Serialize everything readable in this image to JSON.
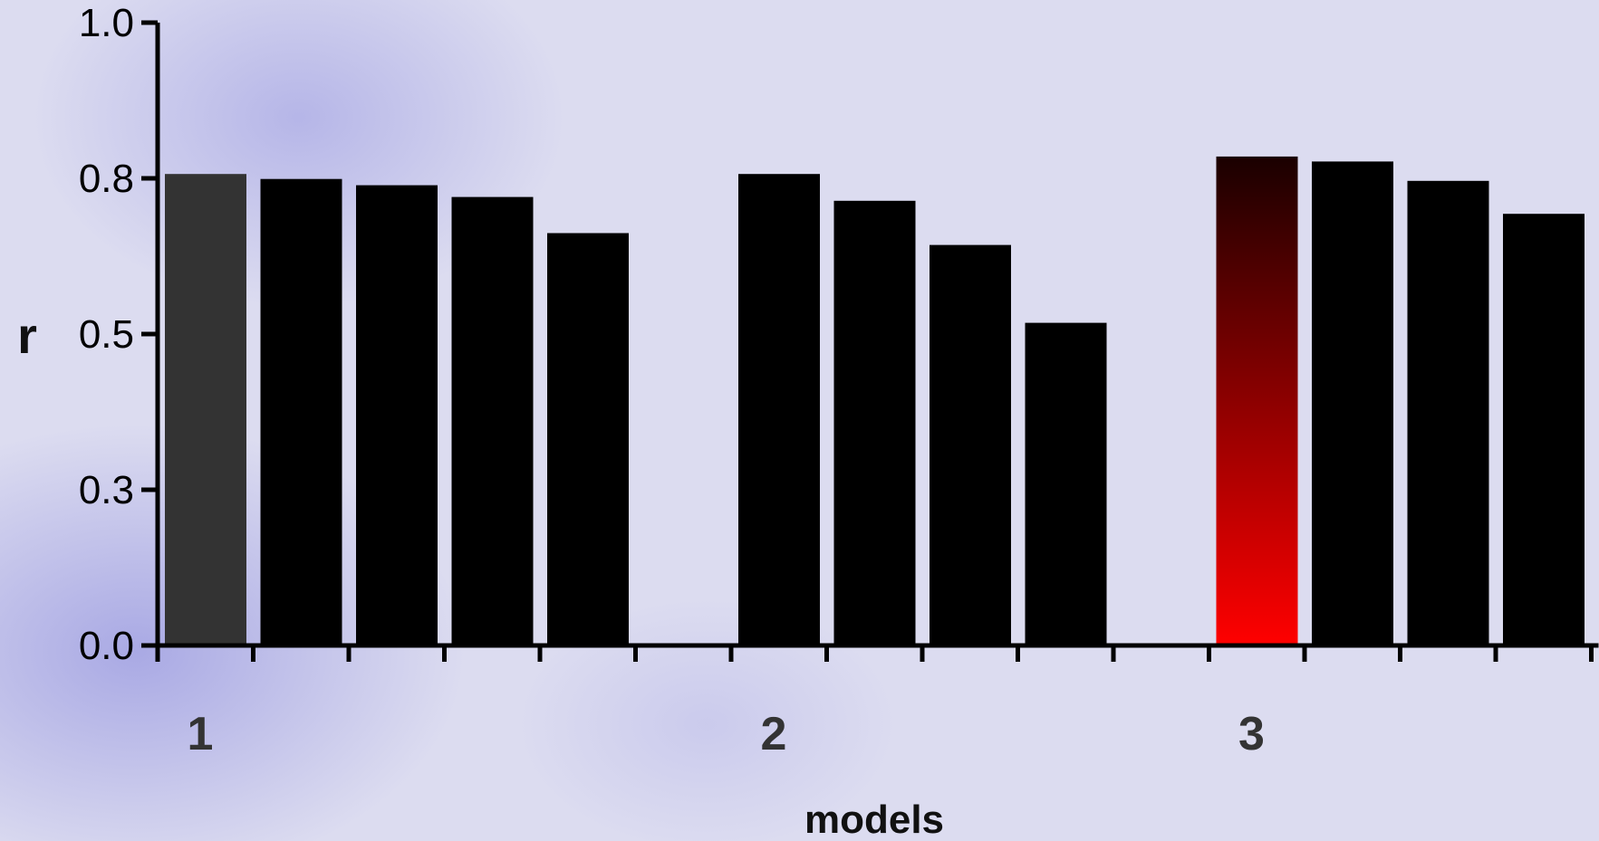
{
  "chart_data": {
    "type": "bar",
    "title": "",
    "xlabel": "models",
    "ylabel": "r",
    "ylim": [
      0,
      1.0
    ],
    "yticks": [
      {
        "value": 0.0,
        "label": "0.0"
      },
      {
        "value": 0.25,
        "label": "0.3"
      },
      {
        "value": 0.5,
        "label": "0.5"
      },
      {
        "value": 0.75,
        "label": "0.8"
      },
      {
        "value": 1.0,
        "label": "1.0"
      }
    ],
    "grid": false,
    "legend": "none",
    "groups": [
      {
        "label": "1",
        "values": [
          0.757,
          0.749,
          0.739,
          0.72,
          0.662
        ]
      },
      {
        "label": "2",
        "values": [
          0.757,
          0.714,
          0.643,
          0.518
        ]
      },
      {
        "label": "3",
        "values": [
          0.785,
          0.777,
          0.746,
          0.693
        ]
      }
    ],
    "colors": {
      "bar": "#000000",
      "highlight_first": "#333333",
      "highlight_best_top": "#1a0000",
      "highlight_best_bottom": "#ff0000",
      "axis": "#000000"
    }
  }
}
